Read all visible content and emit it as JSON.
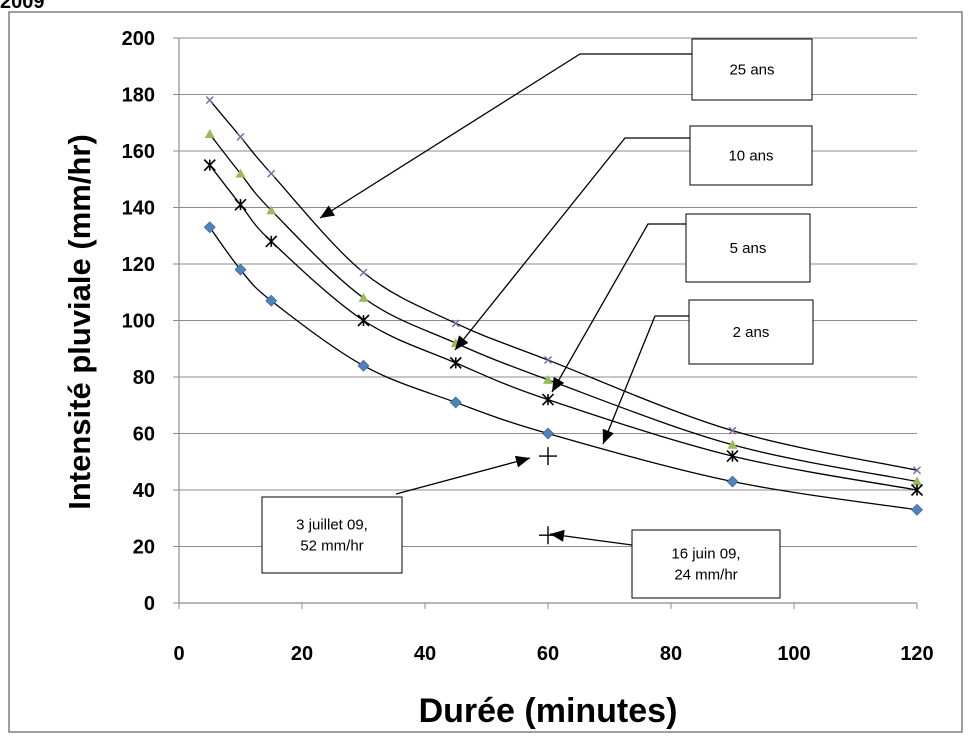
{
  "header_fragment": "2009",
  "chart_data": {
    "type": "line",
    "title": "",
    "xlabel": "Durée (minutes)",
    "ylabel": "Intensité pluviale (mm/hr)",
    "xlim": [
      0,
      120
    ],
    "ylim": [
      0,
      200
    ],
    "x_ticks": [
      0,
      20,
      40,
      60,
      80,
      100,
      120
    ],
    "y_ticks": [
      0,
      20,
      40,
      60,
      80,
      100,
      120,
      140,
      160,
      180,
      200
    ],
    "grid": "horizontal",
    "x": [
      5,
      10,
      15,
      30,
      45,
      60,
      90,
      120
    ],
    "series": [
      {
        "label": "25 ans",
        "marker": "x",
        "color": "#8064a2",
        "values": [
          178,
          165,
          152,
          117,
          99,
          86,
          61,
          47
        ]
      },
      {
        "label": "10 ans",
        "marker": "triangle",
        "color": "#9bbb59",
        "values": [
          166,
          152,
          139,
          108,
          92,
          79,
          56,
          43
        ]
      },
      {
        "label": "5 ans",
        "marker": "asterisk",
        "color": "#000000",
        "values": [
          155,
          141,
          128,
          100,
          85,
          72,
          52,
          40
        ]
      },
      {
        "label": "2 ans",
        "marker": "diamond",
        "color": "#4f81bd",
        "values": [
          133,
          118,
          107,
          84,
          71,
          60,
          43,
          33
        ]
      }
    ],
    "observations": [
      {
        "lines": [
          "3 juillet 09,",
          "52 mm/hr"
        ],
        "x": 60,
        "y": 52,
        "marker": "plus"
      },
      {
        "lines": [
          "16 juin 09,",
          "24 mm/hr"
        ],
        "x": 60,
        "y": 24,
        "marker": "plus"
      }
    ]
  }
}
